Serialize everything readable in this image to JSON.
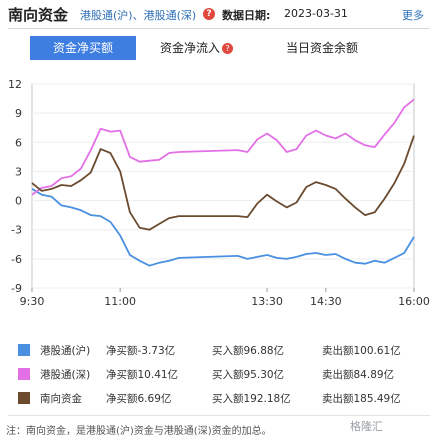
{
  "header": {
    "title": "南向资金",
    "subtitle": "港股通(沪)、港股通(深)",
    "help_icon": "?",
    "date_label": "数据日期:",
    "date": "2023-03-31",
    "more": "更多"
  },
  "tabs": [
    {
      "label": "资金净买额",
      "active": true
    },
    {
      "label": "资金净流入",
      "help": "?"
    },
    {
      "label": "当日资金余额"
    }
  ],
  "colors": {
    "accent": "#3e7ee0",
    "hu": "#4a90e2",
    "shen": "#e36fe6",
    "nanxiang": "#6b4a2e"
  },
  "chart_data": {
    "type": "line",
    "y_ticks": [
      "12",
      "9",
      "6",
      "3",
      "0",
      "-3",
      "-6",
      "-9"
    ],
    "ylim": [
      -9,
      12
    ],
    "x_ticks": [
      "9:30",
      "11:00",
      "13:30",
      "14:30",
      "16:00"
    ],
    "series": [
      {
        "name": "港股通(沪)",
        "color": "#4a90e2",
        "x": [
          "9:30",
          "9:40",
          "9:50",
          "10:00",
          "10:10",
          "10:20",
          "10:30",
          "10:40",
          "10:50",
          "11:00",
          "11:10",
          "11:20",
          "11:30",
          "11:40",
          "11:50",
          "12:00",
          "13:00",
          "13:10",
          "13:20",
          "13:30",
          "13:40",
          "13:50",
          "14:00",
          "14:10",
          "14:20",
          "14:30",
          "14:40",
          "14:50",
          "15:00",
          "15:10",
          "15:20",
          "15:30",
          "15:40",
          "15:50",
          "16:00"
        ],
        "values": [
          1.2,
          0.6,
          0.4,
          -0.5,
          -0.7,
          -1.0,
          -1.5,
          -1.6,
          -2.2,
          -3.6,
          -5.6,
          -6.2,
          -6.7,
          -6.4,
          -6.2,
          -5.9,
          -5.7,
          -6.0,
          -5.8,
          -5.6,
          -5.9,
          -6.0,
          -5.8,
          -5.5,
          -5.4,
          -5.6,
          -5.5,
          -6.0,
          -6.4,
          -6.5,
          -6.2,
          -6.4,
          -5.9,
          -5.4,
          -3.73
        ]
      },
      {
        "name": "港股通(深)",
        "color": "#e36fe6",
        "x": [
          "9:30",
          "9:40",
          "9:50",
          "10:00",
          "10:10",
          "10:20",
          "10:30",
          "10:40",
          "10:50",
          "11:00",
          "11:10",
          "11:20",
          "11:30",
          "11:40",
          "11:50",
          "12:00",
          "13:00",
          "13:10",
          "13:20",
          "13:30",
          "13:40",
          "13:50",
          "14:00",
          "14:10",
          "14:20",
          "14:30",
          "14:40",
          "14:50",
          "15:00",
          "15:10",
          "15:20",
          "15:30",
          "15:40",
          "15:50",
          "16:00"
        ],
        "values": [
          0.6,
          1.3,
          1.5,
          2.3,
          2.5,
          3.3,
          5.2,
          7.4,
          7.1,
          7.2,
          4.5,
          4.0,
          4.1,
          4.2,
          4.9,
          5.0,
          5.2,
          5.0,
          6.3,
          6.9,
          6.2,
          5.0,
          5.3,
          6.7,
          7.2,
          6.7,
          6.4,
          6.9,
          6.2,
          5.7,
          5.5,
          6.8,
          8.0,
          9.6,
          10.41
        ]
      },
      {
        "name": "南向资金",
        "color": "#6b4a2e",
        "x": [
          "9:30",
          "9:40",
          "9:50",
          "10:00",
          "10:10",
          "10:20",
          "10:30",
          "10:40",
          "10:50",
          "11:00",
          "11:10",
          "11:20",
          "11:30",
          "11:40",
          "11:50",
          "12:00",
          "13:00",
          "13:10",
          "13:20",
          "13:30",
          "13:40",
          "13:50",
          "14:00",
          "14:10",
          "14:20",
          "14:30",
          "14:40",
          "14:50",
          "15:00",
          "15:10",
          "15:20",
          "15:30",
          "15:40",
          "15:50",
          "16:00"
        ],
        "values": [
          1.8,
          1.0,
          1.2,
          1.6,
          1.5,
          2.1,
          2.9,
          5.3,
          4.9,
          3.0,
          -1.2,
          -2.8,
          -3.0,
          -2.4,
          -1.8,
          -1.6,
          -1.6,
          -1.7,
          -0.3,
          0.6,
          -0.1,
          -0.7,
          -0.2,
          1.4,
          1.9,
          1.6,
          1.2,
          0.2,
          -0.7,
          -1.5,
          -1.2,
          0.2,
          1.8,
          3.8,
          6.69
        ]
      }
    ]
  },
  "legend": [
    {
      "name": "港股通(沪)",
      "net": "净买额-3.73亿",
      "buy": "买入额96.88亿",
      "sell": "卖出额100.61亿",
      "color": "#4a90e2"
    },
    {
      "name": "港股通(深)",
      "net": "净买额10.41亿",
      "buy": "买入额95.30亿",
      "sell": "卖出额84.89亿",
      "color": "#e36fe6"
    },
    {
      "name": "南向资金",
      "net": "净买额6.69亿",
      "buy": "买入额192.18亿",
      "sell": "卖出额185.49亿",
      "color": "#6b4a2e"
    }
  ],
  "note": "注：南向资金，是港股通(沪)资金与港股通(深)资金的加总。",
  "watermark": "格隆汇"
}
